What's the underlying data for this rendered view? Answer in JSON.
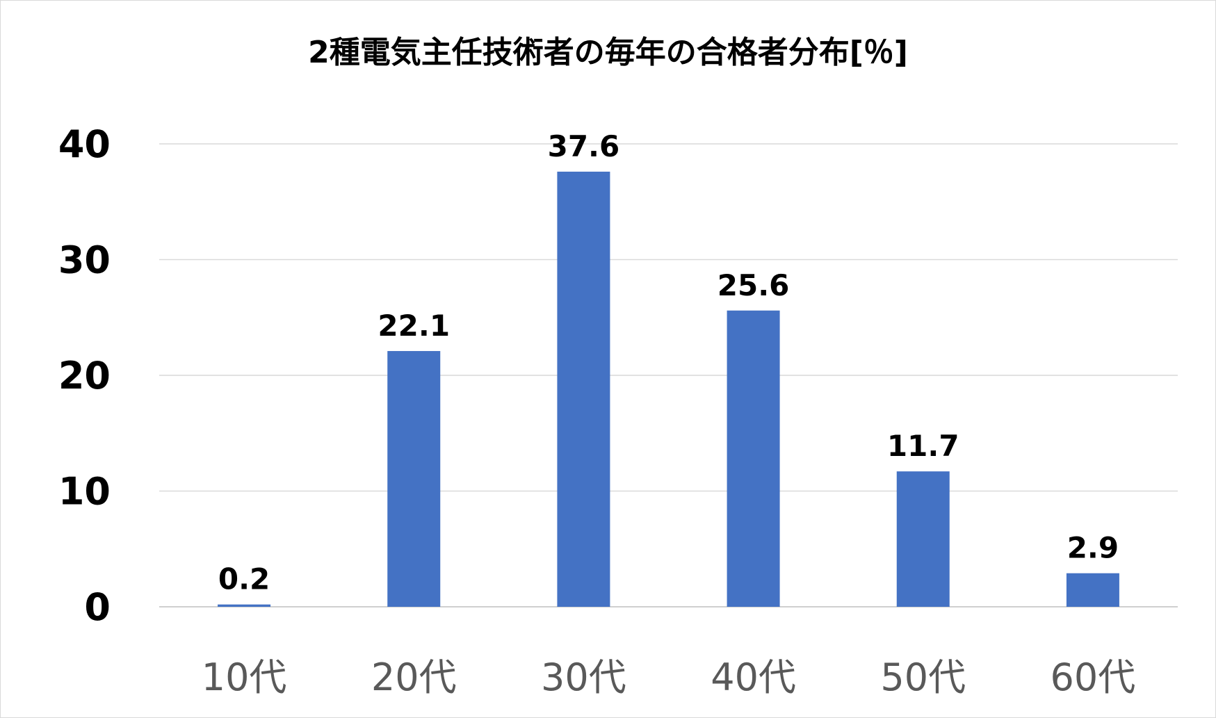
{
  "chart_data": {
    "type": "bar",
    "title": "2種電気主任技術者の毎年の合格者分布[％]",
    "xlabel": "",
    "ylabel": "",
    "categories": [
      "10代",
      "20代",
      "30代",
      "40代",
      "50代",
      "60代"
    ],
    "values": [
      0.2,
      22.1,
      37.6,
      25.6,
      11.7,
      2.9
    ],
    "data_labels": [
      "0.2",
      "22.1",
      "37.6",
      "25.6",
      "11.7",
      "2.9"
    ],
    "ylim": [
      0,
      40
    ],
    "yticks": [
      "0",
      "10",
      "20",
      "30",
      "40"
    ],
    "grid": true,
    "legend": "none",
    "colors": {
      "bar": "#4472c4",
      "grid": "#d9d9d9",
      "x_tick_text": "#595959",
      "y_tick_text": "#000000"
    }
  }
}
